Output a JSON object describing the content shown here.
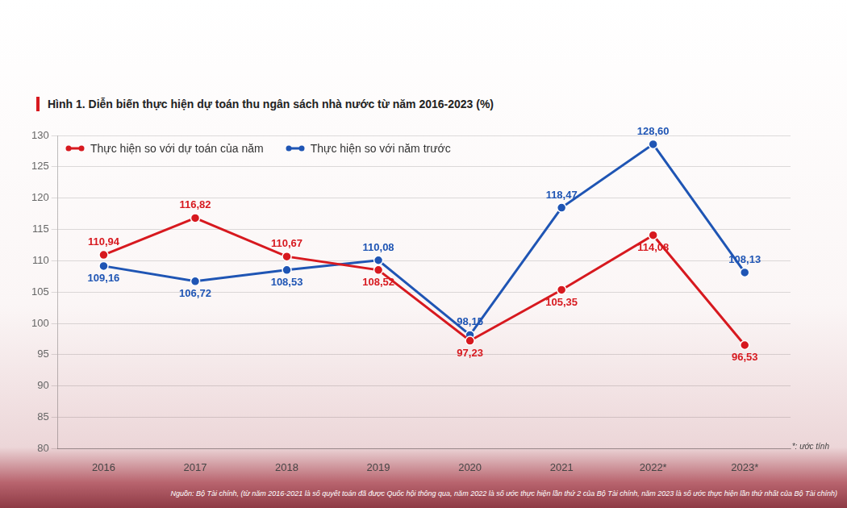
{
  "chart_data": {
    "type": "line",
    "title": "Hình 1. Diễn biến thực hiện dự toán thu ngân sách nhà nước từ năm 2016-2023 (%)",
    "categories": [
      "2016",
      "2017",
      "2018",
      "2019",
      "2020",
      "2021",
      "2022*",
      "2023*"
    ],
    "series": [
      {
        "name": "Thực hiện so với dự toán của năm",
        "color": "#d7191f",
        "marker": "circle",
        "line_style": "solid",
        "values": [
          110.94,
          116.82,
          110.67,
          108.52,
          97.23,
          105.35,
          114.08,
          96.53
        ],
        "value_labels": [
          "110,94",
          "116,82",
          "110,67",
          "108,52",
          "97,23",
          "105,35",
          "114,08",
          "96,53"
        ]
      },
      {
        "name": "Thực hiện so với năm trước",
        "color": "#1f55b4",
        "marker": "circle",
        "line_style": "solid",
        "values": [
          109.16,
          106.72,
          108.53,
          110.08,
          98.15,
          118.47,
          128.6,
          108.13
        ],
        "value_labels": [
          "109,16",
          "106,72",
          "108,53",
          "110,08",
          "98,15",
          "118,47",
          "128,60",
          "108,13"
        ]
      }
    ],
    "ylim": [
      80,
      130
    ],
    "yticks": [
      80,
      85,
      90,
      95,
      100,
      105,
      110,
      115,
      120,
      125,
      130
    ],
    "grid": true,
    "legend": "top-left",
    "data_labels": true,
    "annotations": [
      "*: ước tính",
      "Nguồn: Bộ Tài chính, (từ năm 2016-2021 là số quyết toán đã được Quốc hội thông qua, năm 2022 là số ước thực hiện lần thứ 2 của Bộ Tài chính, năm 2023 là số ước thực hiện lần thứ nhất của Bộ Tài chính)"
    ]
  }
}
